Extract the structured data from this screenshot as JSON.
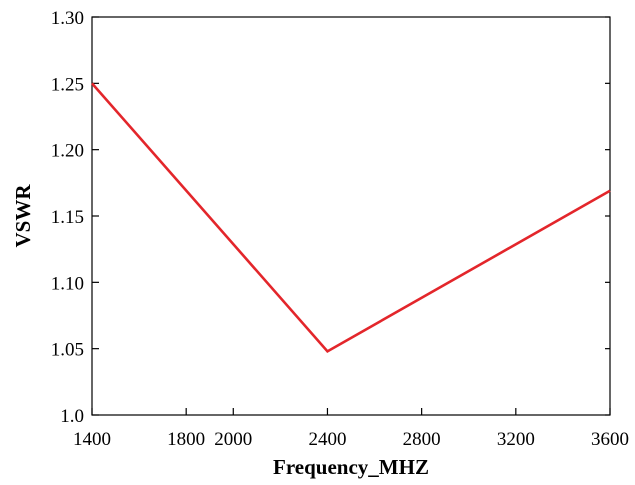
{
  "chart_data": {
    "type": "line",
    "title": "",
    "xlabel": "Frequency_MHZ",
    "ylabel": "VSWR",
    "xlim": [
      1400,
      3600
    ],
    "ylim": [
      1.0,
      1.3
    ],
    "x_ticks": [
      1400,
      1800,
      2000,
      2400,
      2800,
      3200,
      3600
    ],
    "x_tick_labels": [
      "1400",
      "1800",
      "2000",
      "2400",
      "2800",
      "3200",
      "3600"
    ],
    "y_ticks": [
      1.0,
      1.05,
      1.1,
      1.15,
      1.2,
      1.25,
      1.3
    ],
    "y_tick_labels": [
      "1.0",
      "1.05",
      "1.10",
      "1.15",
      "1.20",
      "1.25",
      "1.30"
    ],
    "grid": false,
    "legend": "none",
    "series": [
      {
        "color": "#e3262b",
        "x": [
          1400,
          2400,
          3600
        ],
        "y": [
          1.25,
          1.048,
          1.169
        ]
      }
    ]
  }
}
